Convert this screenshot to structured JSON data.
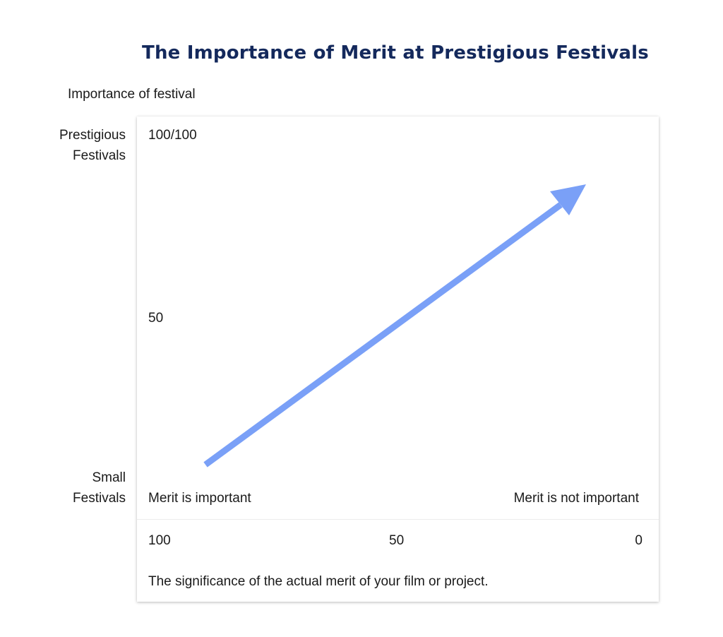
{
  "title": "The Importance of Merit at Prestigious Festivals",
  "y_axis": {
    "title": "Importance of festival",
    "top_category_line1": "Prestigious",
    "top_category_line2": "Festivals",
    "bottom_category_line1": "Small",
    "bottom_category_line2": "Festivals",
    "tick_top": "100/100",
    "tick_mid": "50"
  },
  "x_axis": {
    "left_caption": "Merit is important",
    "right_caption": "Merit is not important",
    "tick_left": "100",
    "tick_mid": "50",
    "tick_right": "0",
    "description": "The significance of the actual merit of your film or project."
  },
  "arrow": {
    "color": "#7aa0f7",
    "from_merit": 90,
    "from_importance": 0,
    "to_merit": 10,
    "to_importance": 80
  }
}
